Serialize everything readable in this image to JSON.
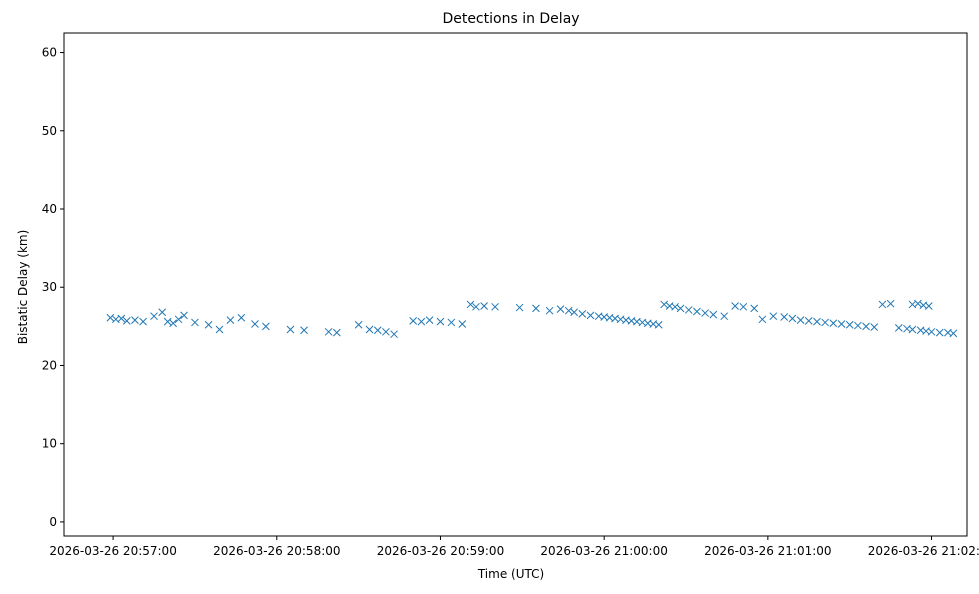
{
  "chart_data": {
    "type": "scatter",
    "title": "Detections in Delay",
    "xlabel": "Time (UTC)",
    "ylabel": "Bistatic Delay (km)",
    "marker": "x",
    "color": "#1f77b4",
    "xlim": [
      "2026-03-26 20:56:42",
      "2026-03-26 21:02:13"
    ],
    "ylim": [
      -1.8,
      62.5
    ],
    "xticks": [
      "2026-03-26 20:57:00",
      "2026-03-26 20:58:00",
      "2026-03-26 20:59:00",
      "2026-03-26 21:00:00",
      "2026-03-26 21:01:00",
      "2026-03-26 21:02:00"
    ],
    "yticks": [
      "0",
      "10",
      "20",
      "30",
      "40",
      "50",
      "60"
    ],
    "grid": false,
    "series": [
      {
        "band_upper": [
          [
            "2026-03-26 20:56:59",
            26.1
          ],
          [
            "2026-03-26 20:57:01",
            25.9
          ],
          [
            "2026-03-26 20:57:03",
            26.0
          ],
          [
            "2026-03-26 20:57:05",
            25.7
          ],
          [
            "2026-03-26 20:57:08",
            25.8
          ],
          [
            "2026-03-26 20:57:11",
            25.6
          ],
          [
            "2026-03-26 20:57:15",
            26.3
          ],
          [
            "2026-03-26 20:57:18",
            26.8
          ],
          [
            "2026-03-26 20:57:20",
            25.6
          ],
          [
            "2026-03-26 20:57:22",
            25.4
          ],
          [
            "2026-03-26 20:57:24",
            25.9
          ],
          [
            "2026-03-26 20:57:26",
            26.4
          ],
          [
            "2026-03-26 20:57:30",
            25.5
          ],
          [
            "2026-03-26 20:57:35",
            25.2
          ],
          [
            "2026-03-26 20:57:39",
            24.6
          ],
          [
            "2026-03-26 20:57:43",
            25.8
          ],
          [
            "2026-03-26 20:57:47",
            26.1
          ],
          [
            "2026-03-26 20:57:52",
            25.3
          ],
          [
            "2026-03-26 20:57:56",
            25.0
          ],
          [
            "2026-03-26 20:58:05",
            24.6
          ],
          [
            "2026-03-26 20:58:10",
            24.5
          ],
          [
            "2026-03-26 20:58:19",
            24.3
          ],
          [
            "2026-03-26 20:58:22",
            24.2
          ],
          [
            "2026-03-26 20:58:30",
            25.2
          ],
          [
            "2026-03-26 20:58:34",
            24.6
          ],
          [
            "2026-03-26 20:58:37",
            24.5
          ],
          [
            "2026-03-26 20:58:40",
            24.3
          ],
          [
            "2026-03-26 20:58:43",
            24.0
          ],
          [
            "2026-03-26 20:58:50",
            25.7
          ],
          [
            "2026-03-26 20:58:53",
            25.6
          ],
          [
            "2026-03-26 20:58:56",
            25.8
          ],
          [
            "2026-03-26 20:59:00",
            25.6
          ],
          [
            "2026-03-26 20:59:04",
            25.5
          ],
          [
            "2026-03-26 20:59:08",
            25.3
          ],
          [
            "2026-03-26 20:59:11",
            27.8
          ],
          [
            "2026-03-26 20:59:13",
            27.5
          ],
          [
            "2026-03-26 20:59:16",
            27.6
          ],
          [
            "2026-03-26 20:59:20",
            27.5
          ],
          [
            "2026-03-26 20:59:29",
            27.4
          ],
          [
            "2026-03-26 20:59:35",
            27.3
          ],
          [
            "2026-03-26 20:59:40",
            27.0
          ],
          [
            "2026-03-26 20:59:44",
            27.2
          ],
          [
            "2026-03-26 20:59:47",
            27.0
          ],
          [
            "2026-03-26 20:59:49",
            26.8
          ],
          [
            "2026-03-26 20:59:52",
            26.6
          ],
          [
            "2026-03-26 20:59:55",
            26.4
          ],
          [
            "2026-03-26 20:59:58",
            26.3
          ],
          [
            "2026-03-26 21:00:00",
            26.2
          ],
          [
            "2026-03-26 21:00:02",
            26.1
          ],
          [
            "2026-03-26 21:00:04",
            26.0
          ],
          [
            "2026-03-26 21:00:06",
            25.9
          ],
          [
            "2026-03-26 21:00:08",
            25.8
          ],
          [
            "2026-03-26 21:00:10",
            25.7
          ],
          [
            "2026-03-26 21:00:12",
            25.6
          ],
          [
            "2026-03-26 21:00:14",
            25.5
          ],
          [
            "2026-03-26 21:00:16",
            25.4
          ],
          [
            "2026-03-26 21:00:18",
            25.3
          ],
          [
            "2026-03-26 21:00:20",
            25.2
          ],
          [
            "2026-03-26 21:00:22",
            27.8
          ],
          [
            "2026-03-26 21:00:24",
            27.6
          ],
          [
            "2026-03-26 21:00:26",
            27.5
          ],
          [
            "2026-03-26 21:00:28",
            27.3
          ],
          [
            "2026-03-26 21:00:31",
            27.1
          ],
          [
            "2026-03-26 21:00:34",
            26.9
          ],
          [
            "2026-03-26 21:00:37",
            26.7
          ],
          [
            "2026-03-26 21:00:40",
            26.5
          ],
          [
            "2026-03-26 21:00:44",
            26.3
          ],
          [
            "2026-03-26 21:00:48",
            27.6
          ],
          [
            "2026-03-26 21:00:51",
            27.5
          ],
          [
            "2026-03-26 21:00:55",
            27.3
          ],
          [
            "2026-03-26 21:00:58",
            25.9
          ],
          [
            "2026-03-26 21:01:02",
            26.3
          ],
          [
            "2026-03-26 21:01:06",
            26.2
          ],
          [
            "2026-03-26 21:01:09",
            26.0
          ],
          [
            "2026-03-26 21:01:12",
            25.8
          ],
          [
            "2026-03-26 21:01:15",
            25.7
          ],
          [
            "2026-03-26 21:01:18",
            25.6
          ],
          [
            "2026-03-26 21:01:21",
            25.5
          ],
          [
            "2026-03-26 21:01:24",
            25.4
          ],
          [
            "2026-03-26 21:01:27",
            25.3
          ],
          [
            "2026-03-26 21:01:30",
            25.2
          ],
          [
            "2026-03-26 21:01:33",
            25.1
          ],
          [
            "2026-03-26 21:01:36",
            25.0
          ],
          [
            "2026-03-26 21:01:39",
            24.9
          ],
          [
            "2026-03-26 21:01:42",
            27.8
          ],
          [
            "2026-03-26 21:01:45",
            27.9
          ],
          [
            "2026-03-26 21:01:48",
            24.8
          ],
          [
            "2026-03-26 21:01:51",
            24.7
          ],
          [
            "2026-03-26 21:01:53",
            27.8
          ],
          [
            "2026-03-26 21:01:55",
            27.9
          ],
          [
            "2026-03-26 21:01:57",
            27.7
          ],
          [
            "2026-03-26 21:01:59",
            27.6
          ],
          [
            "2026-03-26 21:01:53",
            24.6
          ],
          [
            "2026-03-26 21:01:56",
            24.5
          ],
          [
            "2026-03-26 21:01:58",
            24.4
          ],
          [
            "2026-03-26 21:02:00",
            24.3
          ],
          [
            "2026-03-26 21:02:03",
            24.2
          ],
          [
            "2026-03-26 21:02:06",
            24.2
          ],
          [
            "2026-03-26 21:02:08",
            24.1
          ]
        ]
      }
    ]
  }
}
